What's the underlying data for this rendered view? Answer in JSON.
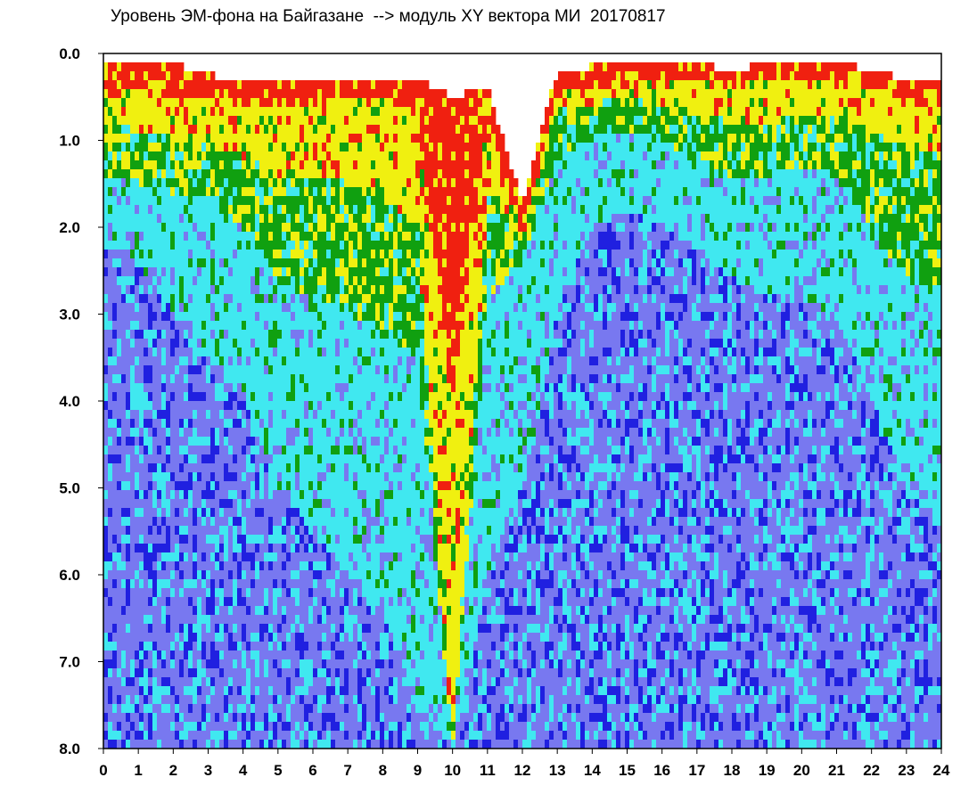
{
  "chart_data": {
    "type": "heatmap",
    "title": "Уровень ЭМ-фона на Байгазане  --> модуль XY вектора МИ  20170817",
    "xlabel": "",
    "ylabel": "",
    "xlim": [
      0,
      24
    ],
    "ylim": [
      8.0,
      0.0
    ],
    "y_axis_inverted": true,
    "grid": false,
    "x_ticks": [
      "0",
      "1",
      "2",
      "3",
      "4",
      "5",
      "6",
      "7",
      "8",
      "9",
      "10",
      "11",
      "12",
      "13",
      "14",
      "15",
      "16",
      "17",
      "18",
      "19",
      "20",
      "21",
      "22",
      "23",
      "24"
    ],
    "y_ticks": [
      "0.0",
      "1.0",
      "2.0",
      "3.0",
      "4.0",
      "5.0",
      "6.0",
      "7.0",
      "8.0"
    ],
    "color_scale": [
      "#2020e0",
      "#7878f0",
      "#40e8f0",
      "#10a010",
      "#f0f010",
      "#f02010"
    ],
    "bands": {
      "hours": [
        0,
        1,
        2,
        3,
        4,
        5,
        6,
        7,
        8,
        9,
        10,
        11,
        12,
        13,
        14,
        15,
        16,
        17,
        18,
        19,
        20,
        21,
        22,
        23,
        24
      ],
      "top_value": [
        0.15,
        0.15,
        0.1,
        0.25,
        0.3,
        0.3,
        0.3,
        0.3,
        0.3,
        0.3,
        0.5,
        0.4,
        1.7,
        0.2,
        0.15,
        0.1,
        0.1,
        0.1,
        0.2,
        0.1,
        0.1,
        0.1,
        0.2,
        0.3,
        0.3
      ],
      "red_to": [
        0.4,
        0.4,
        0.5,
        0.5,
        0.6,
        0.6,
        0.6,
        0.5,
        0.5,
        0.7,
        4.0,
        0.8,
        2.0,
        0.4,
        0.4,
        0.3,
        0.3,
        0.3,
        0.4,
        0.3,
        0.3,
        0.3,
        0.4,
        0.5,
        0.5
      ],
      "yellow_to": [
        0.8,
        0.9,
        1.0,
        1.0,
        1.2,
        1.4,
        1.4,
        1.5,
        1.6,
        2.0,
        8.0,
        1.6,
        2.1,
        0.6,
        0.6,
        0.5,
        0.6,
        0.7,
        0.8,
        0.8,
        0.7,
        0.7,
        0.9,
        1.0,
        1.2
      ],
      "green_to": [
        1.4,
        1.5,
        1.6,
        1.6,
        2.0,
        2.6,
        2.8,
        3.0,
        3.2,
        3.5,
        8.0,
        2.8,
        2.4,
        1.2,
        1.0,
        0.9,
        1.0,
        1.2,
        1.4,
        1.4,
        1.3,
        1.4,
        2.0,
        2.6,
        2.8
      ],
      "cyan_to": [
        2.2,
        2.4,
        3.0,
        3.5,
        4.0,
        5.0,
        5.5,
        6.0,
        6.5,
        7.5,
        8.0,
        6.0,
        5.0,
        3.0,
        2.0,
        1.8,
        2.0,
        2.2,
        2.6,
        2.8,
        2.8,
        3.0,
        4.0,
        5.0,
        5.5
      ]
    }
  }
}
